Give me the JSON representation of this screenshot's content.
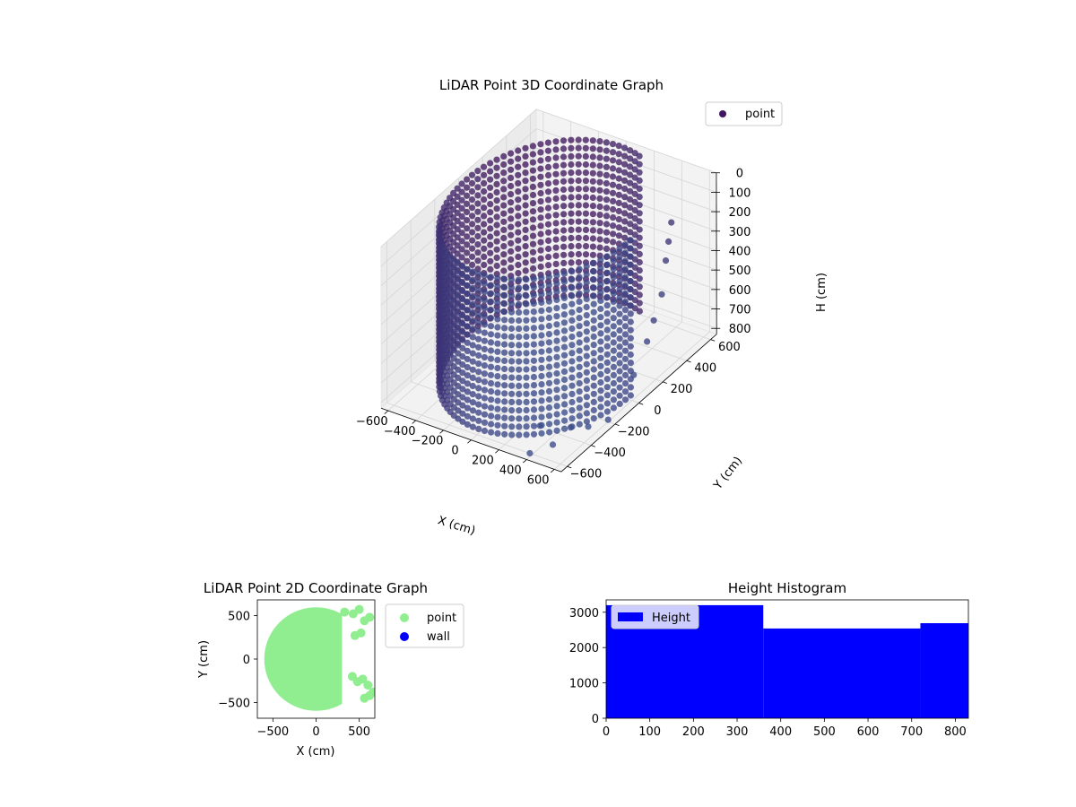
{
  "colors": {
    "point3d_dark": "#40175c",
    "point3d_mid": "#462a78",
    "point3d_light": "#3a4a8a",
    "point2d": "#90ee90",
    "wall": "#0000ff",
    "histogram": "#0000ff",
    "pane": "#f2f2f2",
    "grid": "#d5d5d5"
  },
  "chart_data": [
    {
      "id": "lidar-3d",
      "type": "scatter",
      "projection": "3d",
      "title": "LiDAR Point 3D Coordinate Graph",
      "xlabel": "X (cm)",
      "ylabel": "Y (cm)",
      "zlabel": "H (cm)",
      "x_ticks": [
        -600,
        -400,
        -200,
        0,
        200,
        400,
        600
      ],
      "y_ticks": [
        -600,
        -400,
        -200,
        0,
        200,
        400,
        600
      ],
      "z_ticks": [
        0,
        100,
        200,
        300,
        400,
        500,
        600,
        700,
        800
      ],
      "xlim": [
        -650,
        650
      ],
      "ylim": [
        -650,
        650
      ],
      "zlim": [
        0,
        830
      ],
      "z_inverted": true,
      "legend": {
        "entries": [
          "point"
        ],
        "position": "top-right"
      },
      "series": [
        {
          "name": "point",
          "shape": "cylindrical wall of points (radius ≈ 600 cm) spanning H 0–830 cm, open toward +X/+Y with a gap around angle 0°–75°",
          "wall_radius": 600,
          "wall_angle_range_deg": [
            75,
            360
          ],
          "height_range": [
            0,
            830
          ],
          "scattered_points": [
            {
              "x": 480,
              "y": 470,
              "h": 200
            },
            {
              "x": 520,
              "y": 400,
              "h": 250
            },
            {
              "x": 560,
              "y": 330,
              "h": 300
            },
            {
              "x": 600,
              "y": 250,
              "h": 420
            },
            {
              "x": 620,
              "y": 160,
              "h": 500
            },
            {
              "x": 640,
              "y": 80,
              "h": 560
            },
            {
              "x": 630,
              "y": -20,
              "h": 680
            },
            {
              "x": 600,
              "y": -200,
              "h": 820
            },
            {
              "x": 560,
              "y": -320,
              "h": 800
            },
            {
              "x": 520,
              "y": -420,
              "h": 760
            },
            {
              "x": 460,
              "y": -500,
              "h": 820
            },
            {
              "x": 420,
              "y": -560,
              "h": 700
            },
            {
              "x": 380,
              "y": -600,
              "h": 830
            }
          ]
        }
      ]
    },
    {
      "id": "lidar-2d",
      "type": "scatter",
      "title": "LiDAR Point 2D Coordinate Graph",
      "xlabel": "X (cm)",
      "ylabel": "Y (cm)",
      "x_ticks": [
        -500,
        0,
        500
      ],
      "y_ticks": [
        -500,
        0,
        500
      ],
      "xlim": [
        -680,
        680
      ],
      "ylim": [
        -680,
        680
      ],
      "legend": {
        "entries": [
          "point",
          "wall"
        ],
        "position": "outside-right"
      },
      "series": [
        {
          "name": "point",
          "shape": "filled disc of radius ≈ 600 cm, right side cut at x ≈ 300 cm",
          "blob_points": [
            {
              "x": 330,
              "y": 540
            },
            {
              "x": 430,
              "y": 520
            },
            {
              "x": 500,
              "y": 570
            },
            {
              "x": 560,
              "y": 440
            },
            {
              "x": 620,
              "y": 480
            },
            {
              "x": 450,
              "y": 270
            },
            {
              "x": 520,
              "y": 300
            },
            {
              "x": 420,
              "y": -200
            },
            {
              "x": 480,
              "y": -260
            },
            {
              "x": 540,
              "y": -230
            },
            {
              "x": 600,
              "y": -300
            },
            {
              "x": 620,
              "y": -420
            },
            {
              "x": 560,
              "y": -450
            },
            {
              "x": 660,
              "y": -380
            }
          ]
        },
        {
          "name": "wall",
          "points": []
        }
      ]
    },
    {
      "id": "height-histogram",
      "type": "bar",
      "title": "Height Histogram",
      "xlabel": "",
      "ylabel": "",
      "x_ticks": [
        0,
        100,
        200,
        300,
        400,
        500,
        600,
        700,
        800
      ],
      "y_ticks": [
        0,
        1000,
        2000,
        3000
      ],
      "xlim": [
        0,
        830
      ],
      "ylim": [
        0,
        3350
      ],
      "legend": {
        "entries": [
          "Height"
        ],
        "position": "top-left"
      },
      "bins": [
        {
          "x0": 0,
          "x1": 360,
          "count": 3200
        },
        {
          "x0": 360,
          "x1": 720,
          "count": 2540
        },
        {
          "x0": 720,
          "x1": 830,
          "count": 2690
        }
      ],
      "series": [
        {
          "name": "Height"
        }
      ]
    }
  ]
}
